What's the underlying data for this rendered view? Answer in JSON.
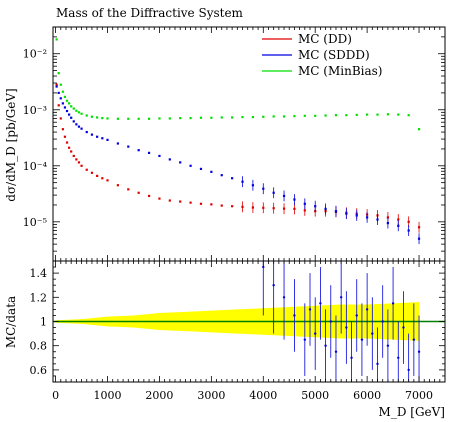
{
  "chart_data": {
    "type": "scatter",
    "title": "Mass of the Diffractive System",
    "xlabel": "M_D [GeV]",
    "ylabel": "dσ/dM_D [pb/GeV]",
    "ratio_ylabel": "MC/data",
    "xlim": [
      -50,
      7500
    ],
    "ylim": [
      2e-06,
      0.03
    ],
    "y_scale": "log",
    "ratio_ylim": [
      0.5,
      1.5
    ],
    "grid": false,
    "legend_position": "top-right",
    "x_ticks": [
      0,
      1000,
      2000,
      3000,
      4000,
      5000,
      6000,
      7000
    ],
    "x_tick_labels": [
      "0",
      "1000",
      "2000",
      "3000",
      "4000",
      "5000",
      "6000",
      "7000"
    ],
    "y_ticks": [
      1e-05,
      0.0001,
      0.001,
      0.01
    ],
    "y_tick_labels": [
      "10⁻⁵",
      "10⁻⁴",
      "10⁻³",
      "10⁻²"
    ],
    "ratio_ticks": [
      0.6,
      0.8,
      1,
      1.2,
      1.4
    ],
    "ratio_tick_labels": [
      "0.6",
      "0.8",
      "1",
      "1.2",
      "1.4"
    ],
    "series": [
      {
        "name": "MC (DD)",
        "color": "#e00000",
        "x": [
          20,
          60,
          100,
          140,
          180,
          220,
          260,
          300,
          350,
          400,
          450,
          500,
          600,
          700,
          800,
          900,
          1000,
          1200,
          1400,
          1600,
          1800,
          2000,
          2200,
          2400,
          2600,
          2800,
          3000,
          3200,
          3400,
          3600,
          3800,
          4000,
          4200,
          4400,
          4600,
          4800,
          5000,
          5200,
          5400,
          5600,
          5800,
          6000,
          6200,
          6400,
          6600,
          6800,
          7000
        ],
        "y": [
          0.0028,
          0.0012,
          0.0007,
          0.00045,
          0.00033,
          0.00026,
          0.00021,
          0.00018,
          0.00015,
          0.00013,
          0.000115,
          0.0001,
          8.5e-05,
          7.5e-05,
          6.6e-05,
          6e-05,
          5.5e-05,
          4.5e-05,
          3.8e-05,
          3.3e-05,
          2.9e-05,
          2.6e-05,
          2.4e-05,
          2.3e-05,
          2.2e-05,
          2.1e-05,
          2.05e-05,
          1.95e-05,
          1.9e-05,
          1.85e-05,
          1.8e-05,
          1.78e-05,
          1.75e-05,
          1.72e-05,
          1.7e-05,
          1.6e-05,
          1.55e-05,
          1.55e-05,
          1.5e-05,
          1.45e-05,
          1.4e-05,
          1.35e-05,
          1.3e-05,
          1.2e-05,
          1.1e-05,
          1e-05,
          8e-06
        ]
      },
      {
        "name": "MC (SDDD)",
        "color": "#0000e0",
        "x": [
          20,
          60,
          100,
          140,
          180,
          220,
          260,
          300,
          350,
          400,
          450,
          500,
          600,
          700,
          800,
          900,
          1000,
          1200,
          1400,
          1600,
          1800,
          2000,
          2200,
          2400,
          2600,
          2800,
          3000,
          3200,
          3400,
          3600,
          3800,
          4000,
          4200,
          4400,
          4600,
          4800,
          5000,
          5200,
          5400,
          5600,
          5800,
          6000,
          6200,
          6400,
          6600,
          6800,
          7000
        ],
        "y": [
          0.0026,
          0.002,
          0.0016,
          0.0013,
          0.0011,
          0.00095,
          0.00082,
          0.00072,
          0.00062,
          0.00055,
          0.0005,
          0.00046,
          0.0004,
          0.00036,
          0.00033,
          0.00031,
          0.00029,
          0.00025,
          0.00022,
          0.00019,
          0.00017,
          0.00015,
          0.00013,
          0.000115,
          0.0001,
          8.8e-05,
          7.8e-05,
          6.8e-05,
          6e-05,
          5.2e-05,
          4.5e-05,
          3.9e-05,
          3.3e-05,
          2.9e-05,
          2.5e-05,
          2.1e-05,
          1.9e-05,
          1.7e-05,
          1.55e-05,
          1.4e-05,
          1.3e-05,
          1.2e-05,
          1.1e-05,
          9.5e-06,
          8.5e-06,
          7e-06,
          5e-06
        ]
      },
      {
        "name": "MC (MinBias)",
        "color": "#00e000",
        "x": [
          20,
          60,
          100,
          140,
          180,
          220,
          260,
          300,
          350,
          400,
          450,
          500,
          600,
          700,
          800,
          900,
          1000,
          1200,
          1400,
          1600,
          1800,
          2000,
          2200,
          2400,
          2600,
          2800,
          3000,
          3200,
          3400,
          3600,
          3800,
          4000,
          4200,
          4400,
          4600,
          4800,
          5000,
          5200,
          5400,
          5600,
          5800,
          6000,
          6200,
          6400,
          6600,
          6800,
          7000
        ],
        "y": [
          0.018,
          0.0045,
          0.0028,
          0.0021,
          0.0017,
          0.00145,
          0.0013,
          0.00115,
          0.00105,
          0.00096,
          0.0009,
          0.00085,
          0.00079,
          0.00075,
          0.00073,
          0.00071,
          0.0007,
          0.00069,
          0.00069,
          0.00069,
          0.00069,
          0.0007,
          0.0007,
          0.00071,
          0.00071,
          0.00072,
          0.00072,
          0.00073,
          0.00073,
          0.00074,
          0.00074,
          0.00075,
          0.00076,
          0.00076,
          0.00077,
          0.00078,
          0.00078,
          0.00079,
          0.0008,
          0.0008,
          0.00081,
          0.00082,
          0.00082,
          0.00083,
          0.00082,
          0.0008,
          0.00045
        ]
      }
    ],
    "ratio": {
      "band_color": "#ffff00",
      "line_color": "#008000",
      "band_x": [
        0,
        500,
        1000,
        1500,
        2000,
        2500,
        3000,
        3500,
        4000,
        4500,
        5000,
        5500,
        6000,
        6500,
        7000
      ],
      "band_half_width": [
        0.01,
        0.02,
        0.04,
        0.05,
        0.07,
        0.08,
        0.09,
        0.1,
        0.11,
        0.12,
        0.13,
        0.14,
        0.14,
        0.15,
        0.16
      ],
      "points_x": [
        4000,
        4200,
        4400,
        4600,
        4800,
        4900,
        5000,
        5100,
        5200,
        5300,
        5400,
        5500,
        5600,
        5700,
        5800,
        5900,
        6000,
        6100,
        6200,
        6300,
        6400,
        6500,
        6600,
        6700,
        6800,
        6900,
        7000
      ],
      "points_y": [
        1.45,
        1.3,
        1.2,
        1.05,
        0.85,
        1.1,
        0.9,
        1.15,
        0.8,
        1.0,
        0.75,
        1.2,
        0.95,
        0.7,
        1.05,
        0.85,
        1.1,
        0.9,
        0.65,
        1.0,
        0.8,
        1.15,
        0.7,
        0.95,
        0.6,
        0.85,
        0.75
      ],
      "points_err": [
        0.4,
        0.4,
        0.35,
        0.3,
        0.3,
        0.3,
        0.3,
        0.3,
        0.3,
        0.3,
        0.3,
        0.3,
        0.3,
        0.3,
        0.3,
        0.3,
        0.3,
        0.3,
        0.3,
        0.3,
        0.3,
        0.3,
        0.3,
        0.3,
        0.3,
        0.3,
        0.3
      ]
    }
  }
}
